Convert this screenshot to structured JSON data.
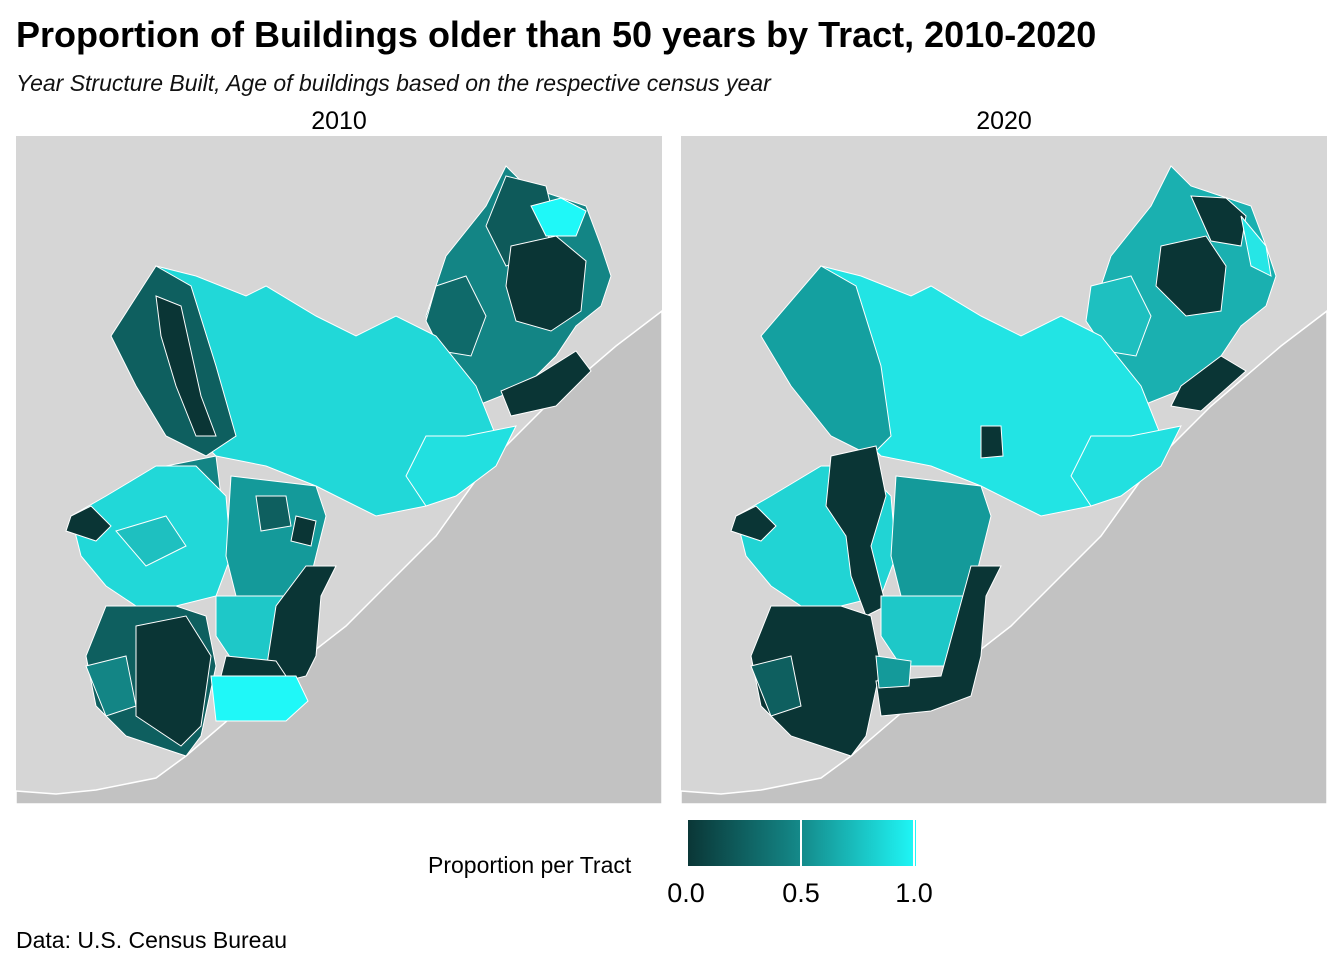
{
  "title": "Proportion of Buildings older than 50 years by Tract, 2010-2020",
  "subtitle": "Year Structure Built, Age of buildings based on the respective census year",
  "facets": [
    {
      "label": "2010"
    },
    {
      "label": "2020"
    }
  ],
  "legend": {
    "title": "Proportion per Tract",
    "ticks": [
      "0.0",
      "0.5",
      "1.0"
    ],
    "colors": {
      "low": "#0a3535",
      "mid": "#148a8a",
      "high": "#1ff8f8"
    }
  },
  "caption": "Data: U.S. Census Bureau",
  "colors": {
    "panel_background": "#d6d6d6",
    "water": "#c2c2c2",
    "tract_border": "#ffffff"
  }
}
